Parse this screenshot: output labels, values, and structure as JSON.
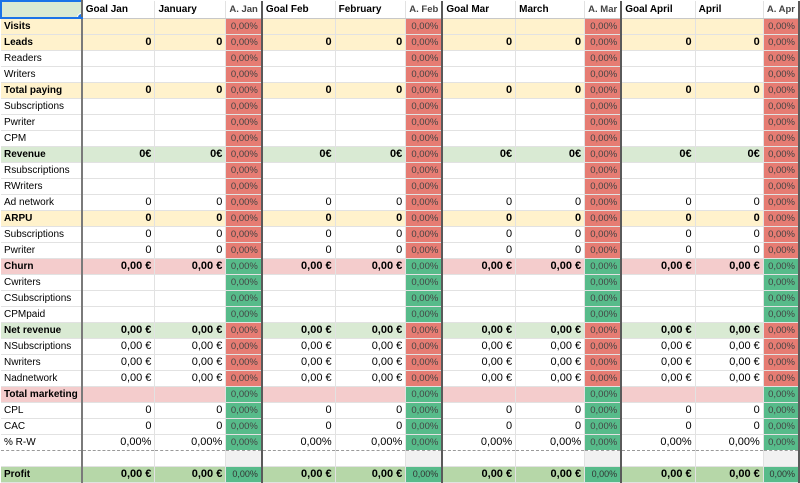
{
  "header": {
    "corner": "",
    "columns": [
      "Goal Jan",
      "January",
      "A. Jan",
      "Goal Feb",
      "February",
      "A. Feb",
      "Goal Mar",
      "March",
      "A. Mar",
      "Goal April",
      "April",
      "A. Apr"
    ]
  },
  "colors": {
    "red": "#e67c73",
    "green": "#57bb8a",
    "yellow": "#fff2cc",
    "light_green": "#d9ead3",
    "pink": "#f4cccc",
    "profit_green": "#b6d7a8"
  },
  "rows": [
    {
      "label": "Visits",
      "style": "yellow bold",
      "pct": "red",
      "cells": [
        "",
        "",
        "0,00%",
        "",
        "",
        "0,00%",
        "",
        "",
        "0,00%",
        "",
        "",
        "0,00%"
      ]
    },
    {
      "label": "Leads",
      "style": "yellow bold",
      "pct": "red",
      "cells": [
        "0",
        "0",
        "0,00%",
        "0",
        "0",
        "0,00%",
        "0",
        "0",
        "0,00%",
        "0",
        "0",
        "0,00%"
      ]
    },
    {
      "label": "Readers",
      "style": "",
      "pct": "red",
      "cells": [
        "",
        "",
        "0,00%",
        "",
        "",
        "0,00%",
        "",
        "",
        "0,00%",
        "",
        "",
        "0,00%"
      ]
    },
    {
      "label": "Writers",
      "style": "",
      "pct": "red",
      "cells": [
        "",
        "",
        "0,00%",
        "",
        "",
        "0,00%",
        "",
        "",
        "0,00%",
        "",
        "",
        "0,00%"
      ]
    },
    {
      "label": "Total paying",
      "style": "yellow bold",
      "pct": "red",
      "cells": [
        "0",
        "0",
        "0,00%",
        "0",
        "0",
        "0,00%",
        "0",
        "0",
        "0,00%",
        "0",
        "0",
        "0,00%"
      ]
    },
    {
      "label": "Subscriptions",
      "style": "",
      "pct": "red",
      "cells": [
        "",
        "",
        "0,00%",
        "",
        "",
        "0,00%",
        "",
        "",
        "0,00%",
        "",
        "",
        "0,00%"
      ]
    },
    {
      "label": "Pwriter",
      "style": "",
      "pct": "red",
      "cells": [
        "",
        "",
        "0,00%",
        "",
        "",
        "0,00%",
        "",
        "",
        "0,00%",
        "",
        "",
        "0,00%"
      ]
    },
    {
      "label": "CPM",
      "style": "",
      "pct": "red",
      "cells": [
        "",
        "",
        "0,00%",
        "",
        "",
        "0,00%",
        "",
        "",
        "0,00%",
        "",
        "",
        "0,00%"
      ]
    },
    {
      "label": "Revenue",
      "style": "lgreen bold",
      "pct": "red",
      "cells": [
        "0€",
        "0€",
        "0,00%",
        "0€",
        "0€",
        "0,00%",
        "0€",
        "0€",
        "0,00%",
        "0€",
        "0€",
        "0,00%"
      ]
    },
    {
      "label": "Rsubscriptions",
      "style": "",
      "pct": "red",
      "cells": [
        "",
        "",
        "0,00%",
        "",
        "",
        "0,00%",
        "",
        "",
        "0,00%",
        "",
        "",
        "0,00%"
      ]
    },
    {
      "label": "RWriters",
      "style": "",
      "pct": "red",
      "cells": [
        "",
        "",
        "0,00%",
        "",
        "",
        "0,00%",
        "",
        "",
        "0,00%",
        "",
        "",
        "0,00%"
      ]
    },
    {
      "label": "Ad network",
      "style": "",
      "pct": "red",
      "cells": [
        "0",
        "0",
        "0,00%",
        "0",
        "0",
        "0,00%",
        "0",
        "0",
        "0,00%",
        "0",
        "0",
        "0,00%"
      ]
    },
    {
      "label": "ARPU",
      "style": "yellow bold",
      "pct": "red",
      "cells": [
        "0",
        "0",
        "0,00%",
        "0",
        "0",
        "0,00%",
        "0",
        "0",
        "0,00%",
        "0",
        "0",
        "0,00%"
      ]
    },
    {
      "label": "Subscriptions",
      "style": "",
      "pct": "red",
      "cells": [
        "0",
        "0",
        "0,00%",
        "0",
        "0",
        "0,00%",
        "0",
        "0",
        "0,00%",
        "0",
        "0",
        "0,00%"
      ]
    },
    {
      "label": "Pwriter",
      "style": "",
      "pct": "red",
      "cells": [
        "0",
        "0",
        "0,00%",
        "0",
        "0",
        "0,00%",
        "0",
        "0",
        "0,00%",
        "0",
        "0",
        "0,00%"
      ]
    },
    {
      "label": "Churn",
      "style": "pink bold",
      "pct": "grn",
      "cells": [
        "0,00 €",
        "0,00 €",
        "0,00%",
        "0,00 €",
        "0,00 €",
        "0,00%",
        "0,00 €",
        "0,00 €",
        "0,00%",
        "0,00 €",
        "0,00 €",
        "0,00%"
      ]
    },
    {
      "label": "Cwriters",
      "style": "",
      "pct": "grn",
      "cells": [
        "",
        "",
        "0,00%",
        "",
        "",
        "0,00%",
        "",
        "",
        "0,00%",
        "",
        "",
        "0,00%"
      ]
    },
    {
      "label": "CSubscriptions",
      "style": "",
      "pct": "grn",
      "cells": [
        "",
        "",
        "0,00%",
        "",
        "",
        "0,00%",
        "",
        "",
        "0,00%",
        "",
        "",
        "0,00%"
      ]
    },
    {
      "label": "CPMpaid",
      "style": "",
      "pct": "grn",
      "cells": [
        "",
        "",
        "0,00%",
        "",
        "",
        "0,00%",
        "",
        "",
        "0,00%",
        "",
        "",
        "0,00%"
      ]
    },
    {
      "label": "Net revenue",
      "style": "lgreen bold",
      "pct": "red",
      "cells": [
        "0,00 €",
        "0,00 €",
        "0,00%",
        "0,00 €",
        "0,00 €",
        "0,00%",
        "0,00 €",
        "0,00 €",
        "0,00%",
        "0,00 €",
        "0,00 €",
        "0,00%"
      ]
    },
    {
      "label": "NSubscriptions",
      "style": "",
      "pct": "red",
      "cells": [
        "0,00 €",
        "0,00 €",
        "0,00%",
        "0,00 €",
        "0,00 €",
        "0,00%",
        "0,00 €",
        "0,00 €",
        "0,00%",
        "0,00 €",
        "0,00 €",
        "0,00%"
      ]
    },
    {
      "label": "Nwriters",
      "style": "",
      "pct": "red",
      "cells": [
        "0,00 €",
        "0,00 €",
        "0,00%",
        "0,00 €",
        "0,00 €",
        "0,00%",
        "0,00 €",
        "0,00 €",
        "0,00%",
        "0,00 €",
        "0,00 €",
        "0,00%"
      ]
    },
    {
      "label": "Nadnetwork",
      "style": "",
      "pct": "red",
      "cells": [
        "0,00 €",
        "0,00 €",
        "0,00%",
        "0,00 €",
        "0,00 €",
        "0,00%",
        "0,00 €",
        "0,00 €",
        "0,00%",
        "0,00 €",
        "0,00 €",
        "0,00%"
      ]
    },
    {
      "label": "Total marketing",
      "style": "pink bold",
      "pct": "grn",
      "cells": [
        "",
        "",
        "0,00%",
        "",
        "",
        "0,00%",
        "",
        "",
        "0,00%",
        "",
        "",
        "0,00%"
      ]
    },
    {
      "label": "CPL",
      "style": "",
      "pct": "grn",
      "cells": [
        "0",
        "0",
        "0,00%",
        "0",
        "0",
        "0,00%",
        "0",
        "0",
        "0,00%",
        "0",
        "0",
        "0,00%"
      ]
    },
    {
      "label": "CAC",
      "style": "",
      "pct": "grn",
      "cells": [
        "0",
        "0",
        "0,00%",
        "0",
        "0",
        "0,00%",
        "0",
        "0",
        "0,00%",
        "0",
        "0",
        "0,00%"
      ]
    },
    {
      "label": "% R-W",
      "style": "dash",
      "pct": "grn",
      "cells": [
        "0,00%",
        "0,00%",
        "0,00%",
        "0,00%",
        "0,00%",
        "0,00%",
        "0,00%",
        "0,00%",
        "0,00%",
        "0,00%",
        "0,00%",
        "0,00%"
      ]
    },
    {
      "label": "",
      "style": "blank",
      "pct": "blank",
      "cells": [
        "",
        "",
        "",
        "",
        "",
        "",
        "",
        "",
        "",
        "",
        "",
        ""
      ]
    },
    {
      "label": "Profit",
      "style": "profit bold",
      "pct": "grn",
      "cells": [
        "0,00 €",
        "0,00 €",
        "0,00%",
        "0,00 €",
        "0,00 €",
        "0,00%",
        "0,00 €",
        "0,00 €",
        "0,00%",
        "0,00 €",
        "0,00 €",
        "0,00%"
      ]
    }
  ]
}
